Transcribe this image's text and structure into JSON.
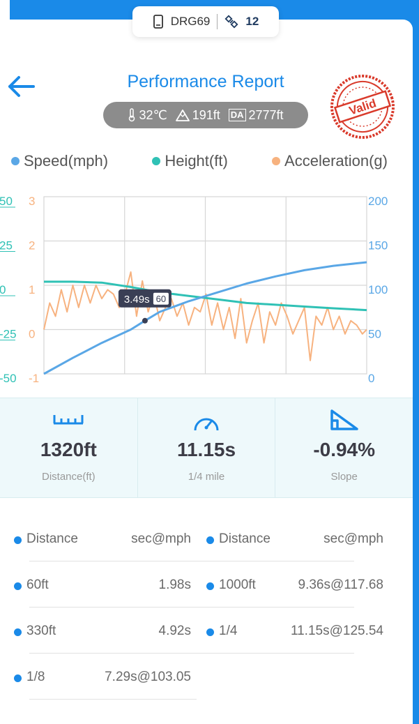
{
  "device": {
    "name": "DRG69",
    "count": "12"
  },
  "header": {
    "title": "Performance Report",
    "stamp_text": "Valid"
  },
  "conditions": {
    "temp": "32℃",
    "elevation": "191ft",
    "da_label": "DA",
    "da_value": "2777ft"
  },
  "legend": [
    {
      "name": "Speed(mph)",
      "color": "#5aa7e6"
    },
    {
      "name": "Height(ft)",
      "color": "#2fc1b5"
    },
    {
      "name": "Acceleration(g)",
      "color": "#f7b27f"
    }
  ],
  "tooltip": {
    "time": "3.49s",
    "speed": "60"
  },
  "chart_data": {
    "type": "line",
    "x": {
      "range": [
        0,
        11.15
      ]
    },
    "axes": {
      "height_left": {
        "ticks": [
          "50",
          "25",
          "0",
          "-25",
          "-50"
        ],
        "range": [
          -50,
          50
        ],
        "color": "#2fc1b5"
      },
      "accel_left": {
        "ticks": [
          "3",
          "2",
          "1",
          "0",
          "-1"
        ],
        "range": [
          -1,
          3
        ],
        "color": "#f7b27f"
      },
      "speed_right": {
        "ticks": [
          "200",
          "150",
          "100",
          "50",
          "0"
        ],
        "range": [
          0,
          200
        ],
        "color": "#5aa7e6"
      }
    },
    "grid": true,
    "series": [
      {
        "name": "Speed(mph)",
        "axis": "speed_right",
        "color": "#5aa7e6",
        "x": [
          0,
          1,
          2,
          3,
          3.49,
          4,
          5,
          6,
          7,
          8,
          9,
          10,
          11.15
        ],
        "y": [
          0,
          18,
          35,
          50,
          60,
          70,
          82,
          92,
          102,
          110,
          117,
          122,
          126
        ]
      },
      {
        "name": "Height(ft)",
        "axis": "height_left",
        "color": "#2fc1b5",
        "x": [
          0,
          1,
          2,
          3,
          4,
          5,
          6,
          7,
          8,
          9,
          10,
          11.15
        ],
        "y": [
          2,
          2,
          1.5,
          -1,
          -4,
          -6,
          -8,
          -10,
          -11,
          -12,
          -13,
          -14
        ]
      },
      {
        "name": "Acceleration(g)",
        "axis": "accel_left",
        "color": "#f7b27f",
        "x": [
          0,
          0.2,
          0.4,
          0.6,
          0.8,
          1.0,
          1.2,
          1.4,
          1.6,
          1.8,
          2.0,
          2.2,
          2.4,
          2.6,
          2.8,
          3.0,
          3.2,
          3.4,
          3.6,
          3.8,
          4.0,
          4.2,
          4.4,
          4.6,
          4.8,
          5.0,
          5.2,
          5.4,
          5.6,
          5.8,
          6.0,
          6.2,
          6.4,
          6.6,
          6.8,
          7.0,
          7.2,
          7.4,
          7.6,
          7.8,
          8.0,
          8.2,
          8.4,
          8.6,
          8.8,
          9.0,
          9.2,
          9.4,
          9.6,
          9.8,
          10.0,
          10.2,
          10.4,
          10.6,
          10.8,
          11.0,
          11.15
        ],
        "y": [
          0,
          0.6,
          0.3,
          0.9,
          0.4,
          1.0,
          0.5,
          1.0,
          0.6,
          1.0,
          0.7,
          0.9,
          0.8,
          0.5,
          0.8,
          1.3,
          0.3,
          1.1,
          0.4,
          0.8,
          0.2,
          0.5,
          0.7,
          0.3,
          0.6,
          0.1,
          0.5,
          0.4,
          0.8,
          0.1,
          0.6,
          0.0,
          0.5,
          -0.2,
          0.7,
          -0.3,
          0.2,
          0.6,
          -0.3,
          0.4,
          0.1,
          0.6,
          0.3,
          -0.1,
          0.2,
          0.5,
          -0.7,
          0.3,
          0.1,
          0.5,
          0.0,
          0.3,
          -0.1,
          0.2,
          0.1,
          -0.1,
          0.0
        ]
      }
    ]
  },
  "stats": [
    {
      "value": "1320ft",
      "label": "Distance(ft)"
    },
    {
      "value": "11.15s",
      "label": "1/4 mile"
    },
    {
      "value": "-0.94%",
      "label": "Slope"
    }
  ],
  "table": {
    "headers": {
      "left_label": "Distance",
      "left_value": "sec@mph",
      "right_label": "Distance",
      "right_value": "sec@mph"
    },
    "rows": [
      {
        "left_label": "60ft",
        "left_value": "1.98s",
        "right_label": "1000ft",
        "right_value": "9.36s@117.68"
      },
      {
        "left_label": "330ft",
        "left_value": "4.92s",
        "right_label": "1/4",
        "right_value": "11.15s@125.54"
      },
      {
        "left_label": "1/8",
        "left_value": "7.29s@103.05",
        "right_label": "",
        "right_value": ""
      }
    ]
  }
}
